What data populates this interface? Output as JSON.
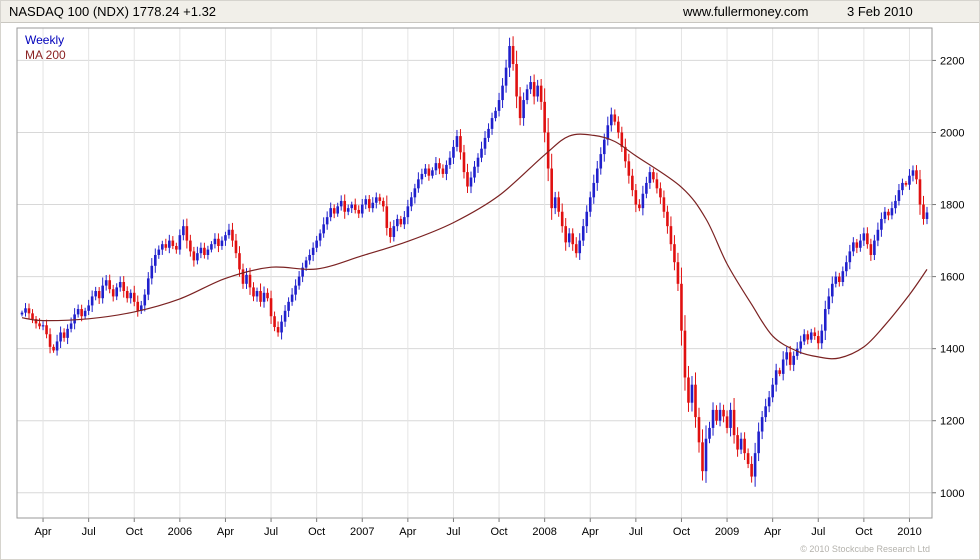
{
  "header": {
    "title": "NASDAQ 100 (NDX) 1778.24 +1.32",
    "site": "www.fullermoney.com",
    "date": "3 Feb 2010"
  },
  "legend": {
    "weekly": "Weekly",
    "ma": "MA 200"
  },
  "footer": {
    "copyright": "© 2010 Stockcube Research Ltd"
  },
  "chart_data": {
    "type": "candlestick",
    "title": "NASDAQ 100 (NDX) Weekly candlestick chart with 200 MA",
    "timeframe": "Weekly",
    "last_price": 1778.24,
    "change": 1.32,
    "ylim": [
      930,
      2290
    ],
    "y_ticks": [
      1000,
      1200,
      1400,
      1600,
      1800,
      2000,
      2200
    ],
    "x_labels": [
      {
        "label": "Apr",
        "week": 6
      },
      {
        "label": "Jul",
        "week": 19
      },
      {
        "label": "Oct",
        "week": 32
      },
      {
        "label": "2006",
        "week": 45
      },
      {
        "label": "Apr",
        "week": 58
      },
      {
        "label": "Jul",
        "week": 71
      },
      {
        "label": "Oct",
        "week": 84
      },
      {
        "label": "2007",
        "week": 97
      },
      {
        "label": "Apr",
        "week": 110
      },
      {
        "label": "Jul",
        "week": 123
      },
      {
        "label": "Oct",
        "week": 136
      },
      {
        "label": "2008",
        "week": 149
      },
      {
        "label": "Apr",
        "week": 162
      },
      {
        "label": "Jul",
        "week": 175
      },
      {
        "label": "Oct",
        "week": 188
      },
      {
        "label": "2009",
        "week": 201
      },
      {
        "label": "Apr",
        "week": 214
      },
      {
        "label": "Jul",
        "week": 227
      },
      {
        "label": "Oct",
        "week": 240
      },
      {
        "label": "2010",
        "week": 253
      }
    ],
    "first_open": 1495,
    "weekly_closes": [
      1500,
      1512,
      1498,
      1482,
      1470,
      1462,
      1465,
      1440,
      1405,
      1395,
      1420,
      1445,
      1430,
      1455,
      1470,
      1495,
      1510,
      1490,
      1505,
      1520,
      1545,
      1560,
      1540,
      1575,
      1590,
      1565,
      1545,
      1570,
      1585,
      1560,
      1540,
      1555,
      1530,
      1505,
      1520,
      1550,
      1595,
      1630,
      1660,
      1675,
      1690,
      1680,
      1700,
      1685,
      1675,
      1715,
      1740,
      1700,
      1670,
      1645,
      1665,
      1680,
      1660,
      1675,
      1690,
      1705,
      1685,
      1700,
      1715,
      1730,
      1700,
      1665,
      1620,
      1580,
      1605,
      1570,
      1545,
      1560,
      1530,
      1555,
      1540,
      1490,
      1460,
      1445,
      1475,
      1505,
      1530,
      1550,
      1575,
      1600,
      1625,
      1645,
      1660,
      1680,
      1700,
      1720,
      1745,
      1765,
      1790,
      1775,
      1795,
      1810,
      1780,
      1790,
      1800,
      1785,
      1775,
      1800,
      1815,
      1790,
      1805,
      1820,
      1810,
      1795,
      1735,
      1710,
      1740,
      1760,
      1745,
      1765,
      1795,
      1820,
      1845,
      1870,
      1885,
      1900,
      1880,
      1895,
      1915,
      1900,
      1885,
      1910,
      1930,
      1960,
      1990,
      1945,
      1890,
      1850,
      1875,
      1905,
      1930,
      1955,
      1985,
      2010,
      2040,
      2060,
      2090,
      2130,
      2180,
      2240,
      2190,
      2100,
      2040,
      2090,
      2120,
      2140,
      2100,
      2130,
      2085,
      2000,
      1900,
      1790,
      1820,
      1780,
      1740,
      1695,
      1720,
      1690,
      1665,
      1700,
      1740,
      1780,
      1820,
      1860,
      1900,
      1940,
      1980,
      2020,
      2050,
      2030,
      2000,
      1960,
      1920,
      1880,
      1840,
      1800,
      1790,
      1830,
      1860,
      1890,
      1870,
      1845,
      1820,
      1780,
      1740,
      1690,
      1640,
      1580,
      1450,
      1320,
      1250,
      1300,
      1210,
      1140,
      1060,
      1150,
      1180,
      1230,
      1200,
      1230,
      1212,
      1180,
      1230,
      1160,
      1120,
      1150,
      1110,
      1080,
      1045,
      1110,
      1170,
      1210,
      1240,
      1265,
      1300,
      1340,
      1330,
      1370,
      1390,
      1355,
      1380,
      1400,
      1420,
      1440,
      1425,
      1445,
      1435,
      1415,
      1450,
      1510,
      1545,
      1580,
      1600,
      1585,
      1615,
      1640,
      1670,
      1695,
      1680,
      1700,
      1720,
      1690,
      1660,
      1700,
      1730,
      1760,
      1780,
      1770,
      1790,
      1810,
      1840,
      1860,
      1855,
      1880,
      1895,
      1870,
      1800,
      1760,
      1778
    ],
    "ma200_anchors": [
      [
        0,
        1486
      ],
      [
        6,
        1478
      ],
      [
        19,
        1483
      ],
      [
        32,
        1502
      ],
      [
        45,
        1538
      ],
      [
        58,
        1595
      ],
      [
        71,
        1626
      ],
      [
        84,
        1621
      ],
      [
        97,
        1658
      ],
      [
        110,
        1698
      ],
      [
        123,
        1750
      ],
      [
        136,
        1825
      ],
      [
        149,
        1938
      ],
      [
        156,
        1990
      ],
      [
        163,
        1992
      ],
      [
        169,
        1975
      ],
      [
        175,
        1935
      ],
      [
        188,
        1848
      ],
      [
        195,
        1760
      ],
      [
        201,
        1635
      ],
      [
        208,
        1523
      ],
      [
        214,
        1435
      ],
      [
        221,
        1393
      ],
      [
        227,
        1377
      ],
      [
        233,
        1374
      ],
      [
        240,
        1405
      ],
      [
        246,
        1465
      ],
      [
        253,
        1550
      ],
      [
        258,
        1620
      ]
    ],
    "colors": {
      "up": "#2020cc",
      "down": "#e01010",
      "ma": "#7b2222",
      "grid_h": "#d8d8d8",
      "grid_v": "#e4e4e4",
      "frame": "#9a9a9a",
      "tick": "#777777",
      "axis_text": "#000000"
    }
  }
}
